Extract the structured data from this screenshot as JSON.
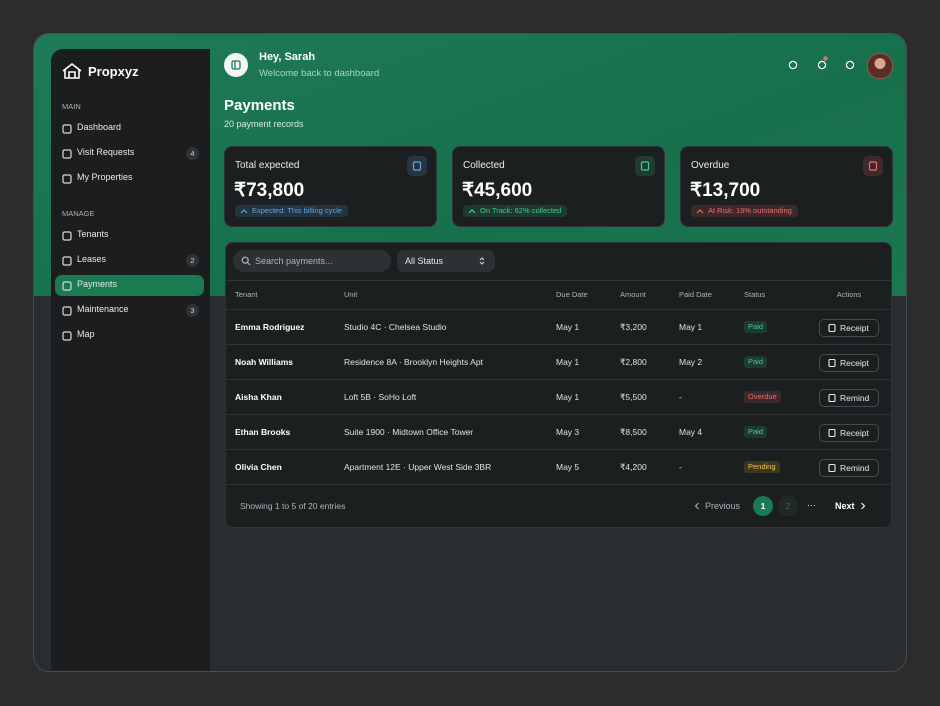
{
  "sidebar": {
    "brand": "Propxyz",
    "sections": [
      {
        "title": "MAIN",
        "items": [
          {
            "label": "Dashboard"
          },
          {
            "label": "Visit Requests",
            "badge": 4
          },
          {
            "label": "My Properties"
          }
        ]
      },
      {
        "title": "MANAGE",
        "items": [
          {
            "label": "Tenants"
          },
          {
            "label": "Leases",
            "badge": 2
          },
          {
            "label": "Payments",
            "active": true
          },
          {
            "label": "Maintenance",
            "badge": 3
          },
          {
            "label": "Map"
          }
        ]
      }
    ]
  },
  "header": {
    "greeting": "Hey, Sarah",
    "subtitle": "Welcome back to dashboard"
  },
  "page": {
    "title": "Payments",
    "subtitle": "20 payment records"
  },
  "cards": [
    {
      "title": "Total expected",
      "value": "₹73,800",
      "badge_label": "Expected:",
      "badge_text": "This billing cycle",
      "color": "#5aa9e6"
    },
    {
      "title": "Collected",
      "value": "₹45,600",
      "badge_label": "On Track:",
      "badge_text": "62% collected",
      "color": "#3ecf8e"
    },
    {
      "title": "Overdue",
      "value": "₹13,700",
      "badge_label": "At Risk:",
      "badge_text": "19% outstanding",
      "color": "#f06a6a"
    }
  ],
  "toolbar": {
    "search_placeholder": "Search payments...",
    "status_filter": "All Status"
  },
  "table": {
    "columns": [
      "Tenant",
      "Unit",
      "Due Date",
      "Amount",
      "Paid Date",
      "Status",
      "Actions"
    ],
    "rows": [
      [
        "Emma Rodriguez",
        "Studio 4C · Chelsea Studio",
        "May 1",
        "₹3,200",
        "May 1",
        {
          "label": "Paid",
          "color": "#3ecf8e"
        },
        "Receipt"
      ],
      [
        "Noah Williams",
        "Residence 8A · Brooklyn Heights Apt",
        "May 1",
        "₹2,800",
        "May 2",
        {
          "label": "Paid",
          "color": "#3ecf8e"
        },
        "Receipt"
      ],
      [
        "Aisha Khan",
        "Loft 5B · SoHo Loft",
        "May 1",
        "₹5,500",
        "-",
        {
          "label": "Overdue",
          "color": "#f06a6a"
        },
        "Remind"
      ],
      [
        "Ethan Brooks",
        "Suite 1900 · Midtown Office Tower",
        "May 3",
        "₹8,500",
        "May 4",
        {
          "label": "Paid",
          "color": "#3ecf8e"
        },
        "Receipt"
      ],
      [
        "Olivia Chen",
        "Apartment 12E · Upper West Side 3BR",
        "May 5",
        "₹4,200",
        "-",
        {
          "label": "Pending",
          "color": "#f5c542"
        },
        "Remind"
      ]
    ]
  },
  "footer": {
    "summary": "Showing 1 to 5 of 20 entries",
    "previous": "Previous",
    "pages": [
      1,
      2
    ],
    "ellipsis": "···",
    "next": "Next"
  }
}
